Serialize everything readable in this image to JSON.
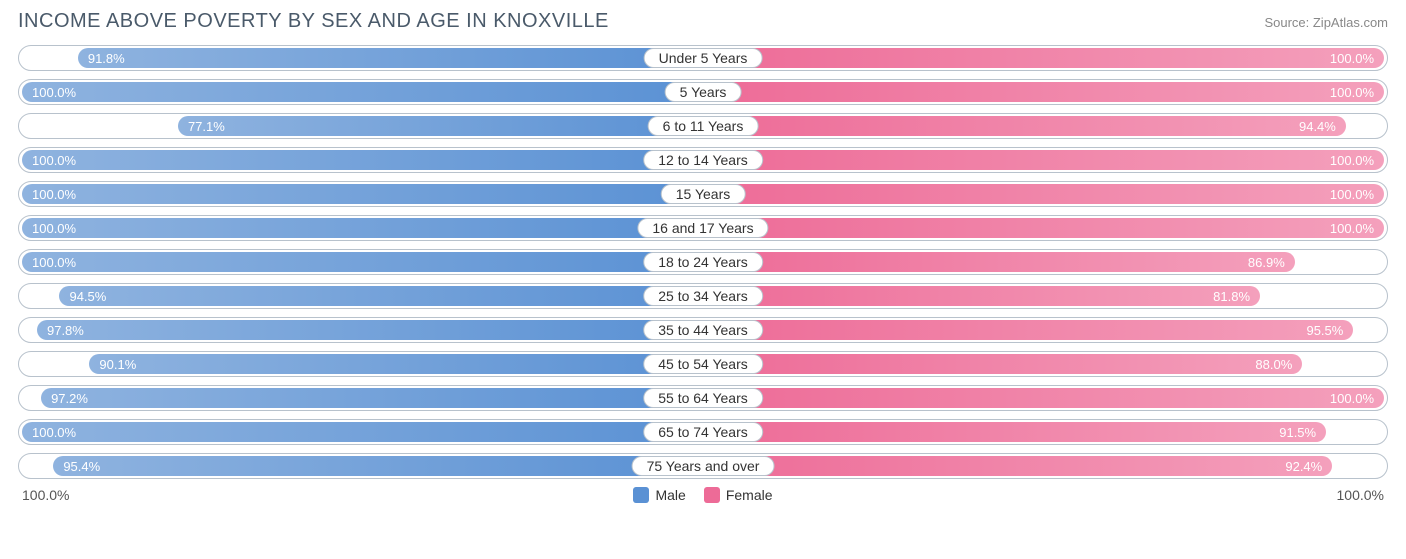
{
  "title": "INCOME ABOVE POVERTY BY SEX AND AGE IN KNOXVILLE",
  "source": "Source: ZipAtlas.com",
  "colors": {
    "male_full": "#5a91d4",
    "male_light": "#8fb3df",
    "female_full": "#ed6b97",
    "female_light": "#f4a0bc",
    "border": "#b8c2cc",
    "text_title": "#4a5a6a"
  },
  "axis": {
    "left": "100.0%",
    "right": "100.0%"
  },
  "legend": {
    "male": "Male",
    "female": "Female"
  },
  "rows": [
    {
      "category": "Under 5 Years",
      "male": 91.8,
      "female": 100.0
    },
    {
      "category": "5 Years",
      "male": 100.0,
      "female": 100.0
    },
    {
      "category": "6 to 11 Years",
      "male": 77.1,
      "female": 94.4
    },
    {
      "category": "12 to 14 Years",
      "male": 100.0,
      "female": 100.0
    },
    {
      "category": "15 Years",
      "male": 100.0,
      "female": 100.0
    },
    {
      "category": "16 and 17 Years",
      "male": 100.0,
      "female": 100.0
    },
    {
      "category": "18 to 24 Years",
      "male": 100.0,
      "female": 86.9
    },
    {
      "category": "25 to 34 Years",
      "male": 94.5,
      "female": 81.8
    },
    {
      "category": "35 to 44 Years",
      "male": 97.8,
      "female": 95.5
    },
    {
      "category": "45 to 54 Years",
      "male": 90.1,
      "female": 88.0
    },
    {
      "category": "55 to 64 Years",
      "male": 97.2,
      "female": 100.0
    },
    {
      "category": "65 to 74 Years",
      "male": 100.0,
      "female": 91.5
    },
    {
      "category": "75 Years and over",
      "male": 95.4,
      "female": 92.4
    }
  ]
}
